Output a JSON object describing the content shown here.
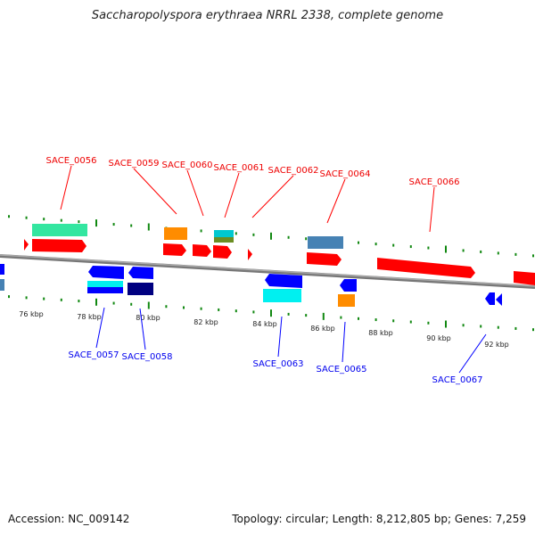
{
  "title": "Saccharopolyspora erythraea NRRL 2338, complete genome",
  "accession": "Accession: NC_009142",
  "stats": "Topology: circular; Length: 8,212,805 bp; Genes: 7,259",
  "scale_labels": [
    "76 kbp",
    "78 kbp",
    "80 kbp",
    "82 kbp",
    "84 kbp",
    "86 kbp",
    "88 kbp",
    "90 kbp",
    "92 kbp"
  ],
  "forward_genes": [
    "SACE_0056",
    "SACE_0059",
    "SACE_0060",
    "SACE_0061",
    "SACE_0062",
    "SACE_0064",
    "SACE_0066"
  ],
  "reverse_genes": [
    "SACE_0057",
    "SACE_0058",
    "SACE_0063",
    "SACE_0065",
    "SACE_0067"
  ],
  "colors": {
    "forward": "#ff0000",
    "reverse": "#0000ff",
    "ticks": "#118811",
    "backbone": "#888888"
  }
}
